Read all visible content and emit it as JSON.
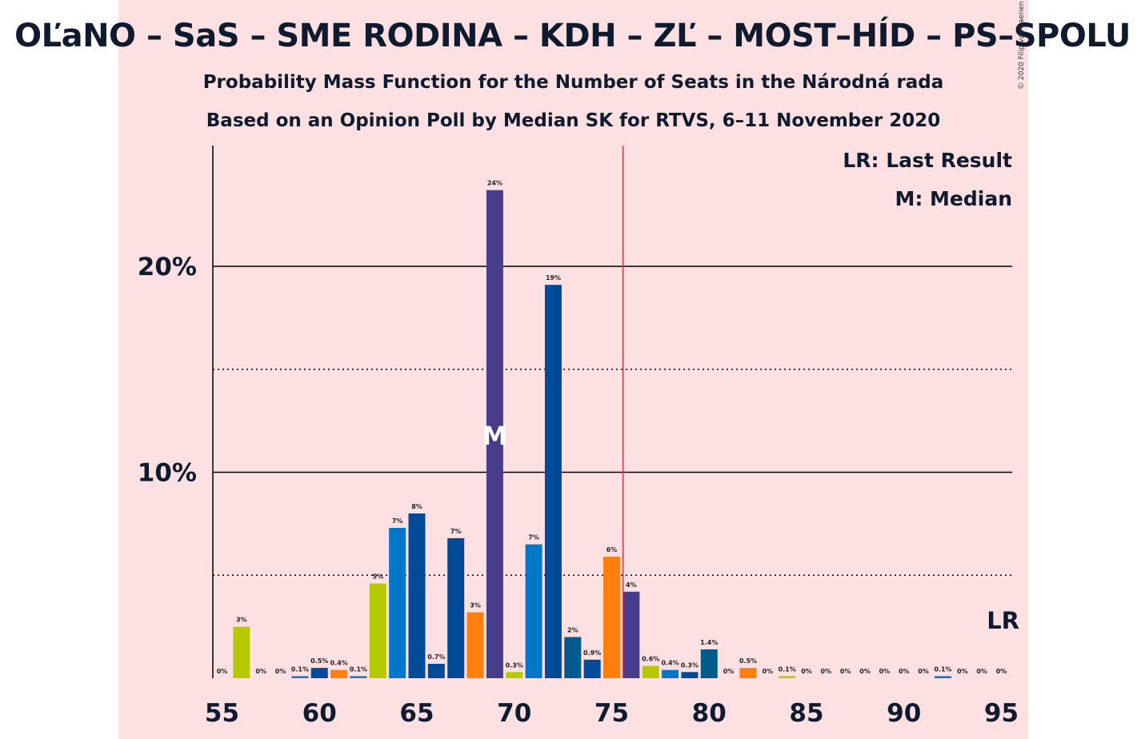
{
  "header": {
    "title": "OĽaNO – SaS – SME RODINA – KDH – ZĽ – MOST–HÍD – PS–SPOLU",
    "subtitle_1": "Probability Mass Function for the Number of Seats in the Národná rada",
    "subtitle_2": "Based on an Opinion Poll by Median SK for RTVS, 6–11 November 2020",
    "copyright": "© 2020 Filip van Laenen"
  },
  "legend": {
    "last_result": "LR: Last Result",
    "median": "M: Median"
  },
  "colors": {
    "background": "#fde0e2",
    "last_result_line": "#e8303a",
    "text": "#0f1a2e",
    "median_marker": "#ffffff"
  },
  "chart_data": {
    "type": "bar",
    "x": [
      55,
      56,
      57,
      58,
      59,
      60,
      61,
      62,
      63,
      64,
      65,
      66,
      67,
      68,
      69,
      70,
      71,
      72,
      73,
      74,
      75,
      76,
      77,
      78,
      79,
      80,
      81,
      82,
      83,
      84,
      85,
      86,
      87,
      88,
      89,
      90,
      91,
      92,
      93,
      94,
      95
    ],
    "values": [
      0,
      2.5,
      0,
      0,
      0.1,
      0.5,
      0.4,
      0.1,
      4.6,
      7.3,
      8.0,
      0.7,
      6.8,
      3.2,
      23.7,
      0.3,
      6.5,
      19.1,
      2.0,
      0.9,
      5.9,
      4.2,
      0.6,
      0.4,
      0.3,
      1.4,
      0,
      0.5,
      0,
      0.1,
      0,
      0,
      0,
      0,
      0,
      0,
      0,
      0.1,
      0,
      0,
      0
    ],
    "labels": [
      "0%",
      "3%",
      "0%",
      "0%",
      "0.1%",
      "0.5%",
      "0.4%",
      "0.1%",
      "5%",
      "7%",
      "8%",
      "0.7%",
      "7%",
      "3%",
      "24%",
      "0.3%",
      "7%",
      "19%",
      "2%",
      "0.9%",
      "6%",
      "4%",
      "0.6%",
      "0.4%",
      "0.3%",
      "1.4%",
      "0%",
      "0.5%",
      "0%",
      "0.1%",
      "0%",
      "0%",
      "0%",
      "0%",
      "0%",
      "0%",
      "0%",
      "0.1%",
      "0%",
      "0%",
      "0%"
    ],
    "colors": [
      "#1f77b4",
      "#b5c900",
      "#1f77b4",
      "#1f77b4",
      "#1f77b4",
      "#004a97",
      "#ff7f0e",
      "#1f77b4",
      "#b5c900",
      "#0077c8",
      "#004a97",
      "#004a97",
      "#004a97",
      "#ff7f0e",
      "#483d8b",
      "#b5c900",
      "#0077c8",
      "#004a97",
      "#005a8c",
      "#004a97",
      "#ff7f0e",
      "#483d8b",
      "#b5c900",
      "#0077c8",
      "#004a97",
      "#005a8c",
      "#004a97",
      "#ff7f0e",
      "#483d8b",
      "#b5c900",
      "#0077c8",
      "#004a97",
      "#005a8c",
      "#004a97",
      "#ff7f0e",
      "#483d8b",
      "#b5c900",
      "#0077c8",
      "#004a97",
      "#005a8c",
      "#004a97"
    ],
    "x_ticks": [
      "55",
      "60",
      "65",
      "70",
      "75",
      "80",
      "85",
      "90",
      "95"
    ],
    "y_ticks": [
      "10%",
      "20%"
    ],
    "ylim": [
      0,
      25
    ],
    "median": 69,
    "median_label": "M",
    "last_result": 76,
    "last_result_label": "LR",
    "grid": "solid at 10% and 20%, dotted at 5% and 15%"
  }
}
